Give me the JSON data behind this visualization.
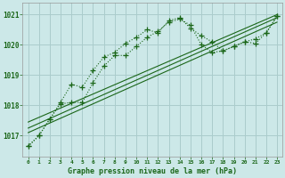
{
  "background_color": "#cce8e8",
  "grid_color": "#aacccc",
  "line_color": "#1a6618",
  "title": "Graphe pression niveau de la mer (hPa)",
  "xlim": [
    -0.5,
    23.5
  ],
  "ylim": [
    1016.3,
    1021.4
  ],
  "yticks": [
    1017,
    1018,
    1019,
    1020,
    1021
  ],
  "xticks": [
    0,
    1,
    2,
    3,
    4,
    5,
    6,
    7,
    8,
    9,
    10,
    11,
    12,
    13,
    14,
    15,
    16,
    17,
    18,
    19,
    20,
    21,
    22,
    23
  ],
  "series1_x": [
    0,
    1,
    2,
    3,
    4,
    5,
    6,
    7,
    8,
    9,
    10,
    11,
    12,
    13,
    14,
    15,
    16,
    17,
    18,
    19,
    20,
    21,
    22,
    23
  ],
  "series1_y": [
    1016.65,
    1017.0,
    1017.55,
    1018.1,
    1018.7,
    1018.6,
    1019.15,
    1019.6,
    1019.75,
    1020.05,
    1020.25,
    1020.5,
    1020.4,
    1020.8,
    1020.9,
    1020.55,
    1020.3,
    1020.1,
    1019.8,
    1019.95,
    1020.1,
    1020.05,
    1020.4,
    1020.95
  ],
  "series2_x": [
    0,
    1,
    2,
    3,
    4,
    5,
    6,
    7,
    8,
    9,
    10,
    11,
    12,
    13,
    14,
    15,
    16,
    17,
    18,
    19,
    20,
    21,
    22,
    23
  ],
  "series2_y": [
    1016.65,
    1017.0,
    1017.55,
    1018.05,
    1018.1,
    1018.1,
    1018.75,
    1019.3,
    1019.65,
    1019.65,
    1019.95,
    1020.25,
    1020.45,
    1020.75,
    1020.85,
    1020.65,
    1020.0,
    1019.75,
    1019.8,
    1019.95,
    1020.1,
    1020.2,
    1020.4,
    1020.95
  ],
  "trend1_x": [
    0,
    23
  ],
  "trend1_y": [
    1017.25,
    1020.9
  ],
  "trend2_x": [
    0,
    23
  ],
  "trend2_y": [
    1017.45,
    1021.0
  ],
  "trend3_x": [
    0,
    23
  ],
  "trend3_y": [
    1017.1,
    1020.75
  ]
}
